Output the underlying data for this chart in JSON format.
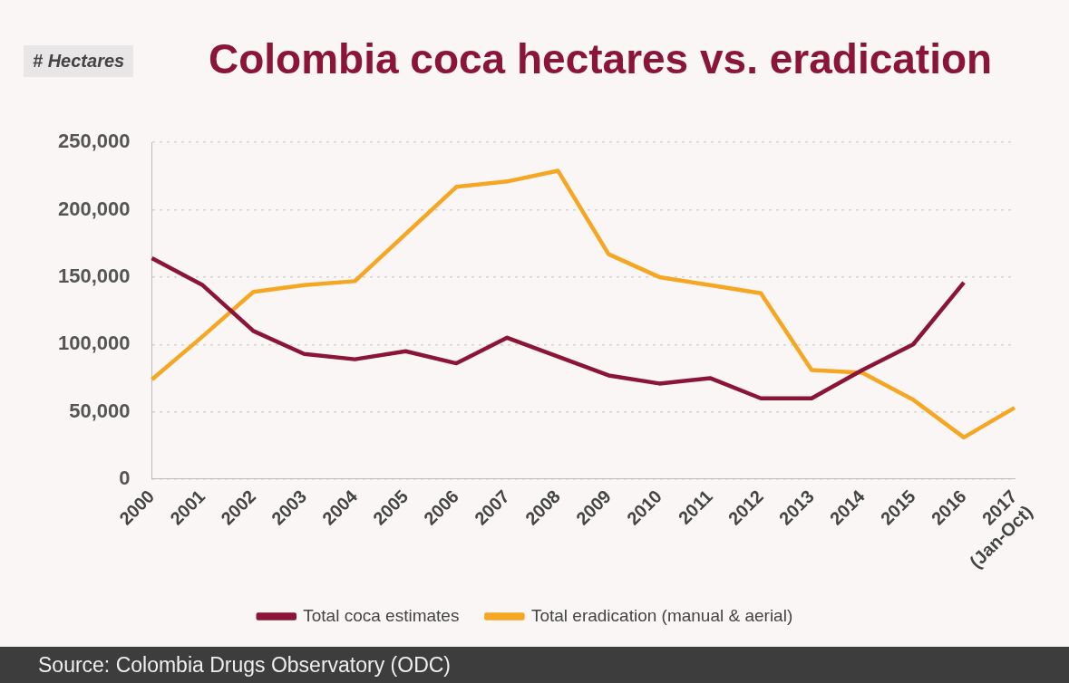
{
  "chart_data": {
    "type": "line",
    "title": "Colombia coca hectares vs. eradication",
    "ylabel": "# Hectares",
    "categories": [
      "2000",
      "2001",
      "2002",
      "2003",
      "2004",
      "2005",
      "2006",
      "2007",
      "2008",
      "2009",
      "2010",
      "2011",
      "2012",
      "2013",
      "2014",
      "2015",
      "2016",
      "2017\n(Jan-Oct)"
    ],
    "series": [
      {
        "name": "Total coca estimates",
        "color": "#8b1538",
        "values": [
          164000,
          144000,
          110000,
          93000,
          89000,
          95000,
          86000,
          105000,
          91000,
          77000,
          71000,
          75000,
          60000,
          60000,
          81000,
          100000,
          146000,
          null
        ]
      },
      {
        "name": "Total eradication (manual & aerial)",
        "color": "#f5a623",
        "values": [
          74000,
          106000,
          139000,
          144000,
          147000,
          182000,
          217000,
          221000,
          229000,
          167000,
          150000,
          144000,
          138000,
          81000,
          79000,
          59000,
          31000,
          53000
        ]
      }
    ],
    "ylim": [
      0,
      250000
    ],
    "yticks": [
      0,
      {
        "value": 50000,
        "label": "50,000"
      },
      {
        "value": 100000,
        "label": "100,000"
      },
      {
        "value": 150000,
        "label": "150,000"
      },
      {
        "value": 200000,
        "label": "200,000"
      },
      {
        "value": 250000,
        "label": "250,000"
      }
    ],
    "grid": "y",
    "legend": "bottom",
    "marker": "none",
    "annotations": [
      "Source: Colombia Drugs Observatory (ODC)"
    ]
  }
}
